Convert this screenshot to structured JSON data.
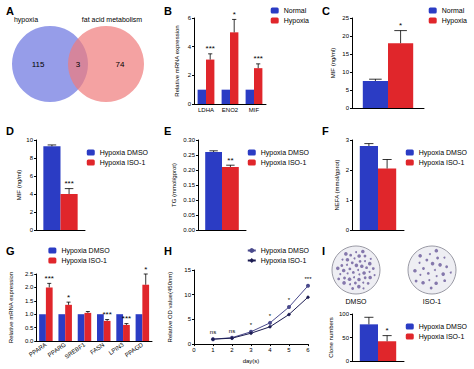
{
  "chart_data": [
    {
      "type": "venn",
      "panel": "A",
      "sets": [
        {
          "name": "hypoxia",
          "color": "#6a74e0",
          "count": 115
        },
        {
          "name": "fat acid metabolism",
          "color": "#ef7b7b",
          "count": 74
        }
      ],
      "intersection": 3
    },
    {
      "type": "bar",
      "panel": "B",
      "ylabel": "Relative mRNA expression",
      "categories": [
        "LDHA",
        "ENO2",
        "MIF"
      ],
      "series": [
        {
          "name": "Normal",
          "color": "#2b3cc4",
          "values": [
            1,
            1,
            1
          ],
          "errors": [
            0,
            0,
            0
          ]
        },
        {
          "name": "Hypoxia",
          "color": "#e0262b",
          "values": [
            3.1,
            5.0,
            2.5
          ],
          "errors": [
            0.4,
            0.9,
            0.3
          ],
          "significance": [
            "***",
            "*",
            "***"
          ]
        }
      ],
      "ylim": [
        0,
        6
      ],
      "yticks": [
        0,
        2,
        4,
        6
      ],
      "legend": "top-right",
      "grid": false
    },
    {
      "type": "bar",
      "panel": "C",
      "ylabel": "MIF (ng/ml)",
      "categories": [
        null
      ],
      "series": [
        {
          "name": "Normal",
          "color": "#2b3cc4",
          "values": [
            7.5
          ],
          "errors": [
            0.5
          ]
        },
        {
          "name": "Hypoxia",
          "color": "#e0262b",
          "values": [
            18
          ],
          "errors": [
            3.5
          ],
          "significance": [
            "*"
          ]
        }
      ],
      "ylim": [
        0,
        25
      ],
      "yticks": [
        0,
        5,
        10,
        15,
        20,
        25
      ],
      "legend": "top-right",
      "grid": false,
      "tick_labels": "y"
    },
    {
      "type": "bar",
      "panel": "D",
      "ylabel": "MIF (ng/ml)",
      "categories": [
        null
      ],
      "series": [
        {
          "name": "Hypoxia DMSO",
          "color": "#2b3cc4",
          "values": [
            9.3
          ],
          "errors": [
            0.15
          ]
        },
        {
          "name": "Hypoxia ISO-1",
          "color": "#e0262b",
          "values": [
            4.0
          ],
          "errors": [
            0.6
          ],
          "significance": [
            "***"
          ]
        }
      ],
      "ylim": [
        0,
        10
      ],
      "yticks": [
        0,
        2,
        4,
        6,
        8,
        10
      ],
      "legend": "right",
      "grid": false,
      "tick_labels": "y"
    },
    {
      "type": "bar",
      "panel": "E",
      "ylabel": "TG (mmol/gprot)",
      "categories": [
        null
      ],
      "series": [
        {
          "name": "Hypoxia DMSO",
          "color": "#2b3cc4",
          "values": [
            0.26
          ],
          "errors": [
            0.004
          ]
        },
        {
          "name": "Hypoxia ISO-1",
          "color": "#e0262b",
          "values": [
            0.21
          ],
          "errors": [
            0.006
          ],
          "significance": [
            "**"
          ]
        }
      ],
      "ylim": [
        0,
        0.3
      ],
      "yticks": [
        {
          "value": 0,
          "label": "0.00"
        },
        0.05,
        {
          "value": 0.1,
          "label": "0.10"
        },
        0.15,
        {
          "value": 0.2,
          "label": "0.20"
        },
        0.25,
        {
          "value": 0.3,
          "label": "0.30"
        }
      ],
      "legend": "right",
      "grid": false,
      "tick_labels": "y"
    },
    {
      "type": "bar",
      "panel": "F",
      "ylabel": "NEFA (mmol/gprot)",
      "categories": [
        null
      ],
      "series": [
        {
          "name": "Hypoxia DMSO",
          "color": "#2b3cc4",
          "values": [
            2.8
          ],
          "errors": [
            0.08
          ]
        },
        {
          "name": "Hypoxia ISO-1",
          "color": "#e0262b",
          "values": [
            2.05
          ],
          "errors": [
            0.3
          ]
        }
      ],
      "ylim": [
        0,
        3
      ],
      "yticks": [
        0,
        1,
        2,
        3
      ],
      "legend": "right",
      "grid": false,
      "tick_labels": "y"
    },
    {
      "type": "bar",
      "panel": "G",
      "ylabel": "Relative mRNA expression",
      "categories": [
        "PPARA",
        "PPARG",
        "SREBF1",
        "FASN",
        "LPIN3",
        "PPAGD"
      ],
      "series": [
        {
          "name": "Hypoxia DMSO",
          "color": "#2b3cc4",
          "values": [
            1,
            1,
            1,
            1,
            1,
            1
          ],
          "errors": [
            0,
            0,
            0,
            0,
            0,
            0
          ]
        },
        {
          "name": "Hypoxia ISO-1",
          "color": "#e0262b",
          "values": [
            2.0,
            1.35,
            1.05,
            0.75,
            0.6,
            2.1
          ],
          "errors": [
            0.15,
            0.1,
            0.05,
            0.05,
            0.05,
            0.4
          ],
          "significance": [
            "***",
            "*",
            null,
            "***",
            "***",
            "*"
          ]
        }
      ],
      "ylim": [
        0,
        2.5
      ],
      "yticks": [
        {
          "value": 0,
          "label": "0.0"
        },
        0.5,
        {
          "value": 1,
          "label": "1.0"
        },
        1.5,
        {
          "value": 2,
          "label": "2.0"
        },
        2.5
      ],
      "legend": "top",
      "grid": false
    },
    {
      "type": "line",
      "panel": "H",
      "xlabel": "day(s)",
      "ylabel": "Relative OD value(450nm)",
      "x": [
        1,
        2,
        3,
        4,
        5,
        6
      ],
      "series": [
        {
          "name": "Hypoxia DMSO",
          "color": "#4a4a8c",
          "marker": "circle",
          "values": [
            1.0,
            1.3,
            2.5,
            4.3,
            7.5,
            11.8
          ],
          "significance": [
            "ns",
            "ns",
            "*",
            "*",
            "*",
            "***"
          ]
        },
        {
          "name": "Hypoxia ISO-1",
          "color": "#1c1c52",
          "marker": "diamond",
          "values": [
            1.0,
            1.2,
            2.2,
            3.5,
            6.0,
            9.5
          ]
        }
      ],
      "xlim": [
        0,
        6
      ],
      "xticks": [
        0,
        1,
        2,
        3,
        4,
        5,
        6
      ],
      "ylim": [
        0,
        15
      ],
      "yticks": [
        0,
        5,
        10,
        15
      ],
      "legend": "top-right",
      "grid": false
    },
    {
      "type": "bar",
      "panel": "I",
      "ylabel": "Clone numbers",
      "plate_labels": [
        "DMSO",
        "ISO-1"
      ],
      "categories": [
        null
      ],
      "series": [
        {
          "name": "Hypoxia DMSO",
          "color": "#2b3cc4",
          "values": [
            78
          ],
          "errors": [
            15
          ]
        },
        {
          "name": "Hypoxia ISO-1",
          "color": "#e0262b",
          "values": [
            42
          ],
          "errors": [
            12
          ],
          "significance": [
            "*"
          ]
        }
      ],
      "ylim": [
        0,
        100
      ],
      "yticks": [
        0,
        50,
        100
      ],
      "legend": "right",
      "grid": false,
      "tick_labels": "y"
    }
  ]
}
